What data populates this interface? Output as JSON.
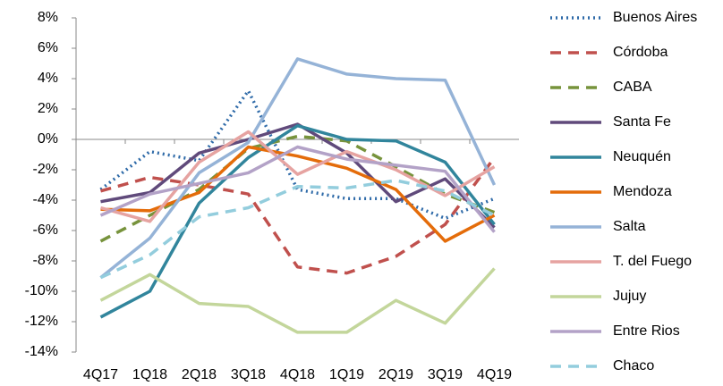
{
  "chart_data": {
    "type": "line",
    "categories": [
      "4Q17",
      "1Q18",
      "2Q18",
      "3Q18",
      "4Q18",
      "1Q19",
      "2Q19",
      "3Q19",
      "4Q19"
    ],
    "ylim": [
      -14,
      8
    ],
    "yticks": [
      {
        "value": -14,
        "label": "-14%"
      },
      {
        "value": -12,
        "label": "-12%"
      },
      {
        "value": -10,
        "label": "-10%"
      },
      {
        "value": -8,
        "label": "-8%"
      },
      {
        "value": -6,
        "label": "-6%"
      },
      {
        "value": -4,
        "label": "-4%"
      },
      {
        "value": -2,
        "label": "-2%"
      },
      {
        "value": 0,
        "label": "0%"
      },
      {
        "value": 2,
        "label": "2%"
      },
      {
        "value": 4,
        "label": "4%"
      },
      {
        "value": 6,
        "label": "6%"
      },
      {
        "value": 8,
        "label": "8%"
      }
    ],
    "grid": false,
    "legend": "right",
    "series": [
      {
        "name": "Buenos Aires",
        "color": "#2e6aa8",
        "dash": "dot",
        "values": [
          -3.3,
          -0.8,
          -1.4,
          3.2,
          -3.3,
          -3.9,
          -3.9,
          -5.2,
          -3.9
        ]
      },
      {
        "name": "Córdoba",
        "color": "#c0504d",
        "dash": "dash",
        "values": [
          -3.4,
          -2.5,
          -3.0,
          -3.6,
          -8.4,
          -8.8,
          -7.7,
          -5.6,
          -1.2
        ]
      },
      {
        "name": "CABA",
        "color": "#77933c",
        "dash": "dash",
        "values": [
          -6.7,
          -5.0,
          -3.3,
          -0.6,
          0.2,
          -0.1,
          -1.8,
          -3.6,
          -4.8
        ]
      },
      {
        "name": "Santa Fe",
        "color": "#604a7b",
        "dash": "solid",
        "values": [
          -4.1,
          -3.5,
          -0.9,
          0.0,
          1.0,
          -0.9,
          -4.1,
          -2.6,
          -5.8
        ]
      },
      {
        "name": "Neuquén",
        "color": "#31859c",
        "dash": "solid",
        "values": [
          -11.7,
          -10.0,
          -4.2,
          -1.2,
          0.9,
          0.0,
          -0.1,
          -1.5,
          -5.6
        ]
      },
      {
        "name": "Mendoza",
        "color": "#e46c0a",
        "dash": "solid",
        "values": [
          -4.6,
          -4.7,
          -3.5,
          -0.5,
          -1.1,
          -1.9,
          -3.3,
          -6.7,
          -5.0
        ]
      },
      {
        "name": "Salta",
        "color": "#95b3d7",
        "dash": "solid",
        "values": [
          -9.1,
          -6.5,
          -2.2,
          -0.2,
          5.3,
          4.3,
          4.0,
          3.9,
          -3.0
        ]
      },
      {
        "name": "T. del Fuego",
        "color": "#e6a3a1",
        "dash": "solid",
        "values": [
          -4.5,
          -5.4,
          -1.5,
          0.5,
          -2.3,
          -0.8,
          -2.0,
          -3.7,
          -1.8
        ]
      },
      {
        "name": "Jujuy",
        "color": "#c3d69b",
        "dash": "solid",
        "values": [
          -10.6,
          -8.9,
          -10.8,
          -11.0,
          -12.7,
          -12.7,
          -10.6,
          -12.1,
          -8.5
        ]
      },
      {
        "name": "Entre Rios",
        "color": "#b3a2c7",
        "dash": "solid",
        "values": [
          -5.0,
          -3.6,
          -2.9,
          -2.2,
          -0.5,
          -1.3,
          -1.7,
          -2.1,
          -6.1
        ]
      },
      {
        "name": "Chaco",
        "color": "#93cddd",
        "dash": "dash",
        "values": [
          -9.1,
          -7.6,
          -5.1,
          -4.5,
          -3.1,
          -3.2,
          -2.7,
          -3.4,
          -5.0
        ]
      }
    ]
  }
}
